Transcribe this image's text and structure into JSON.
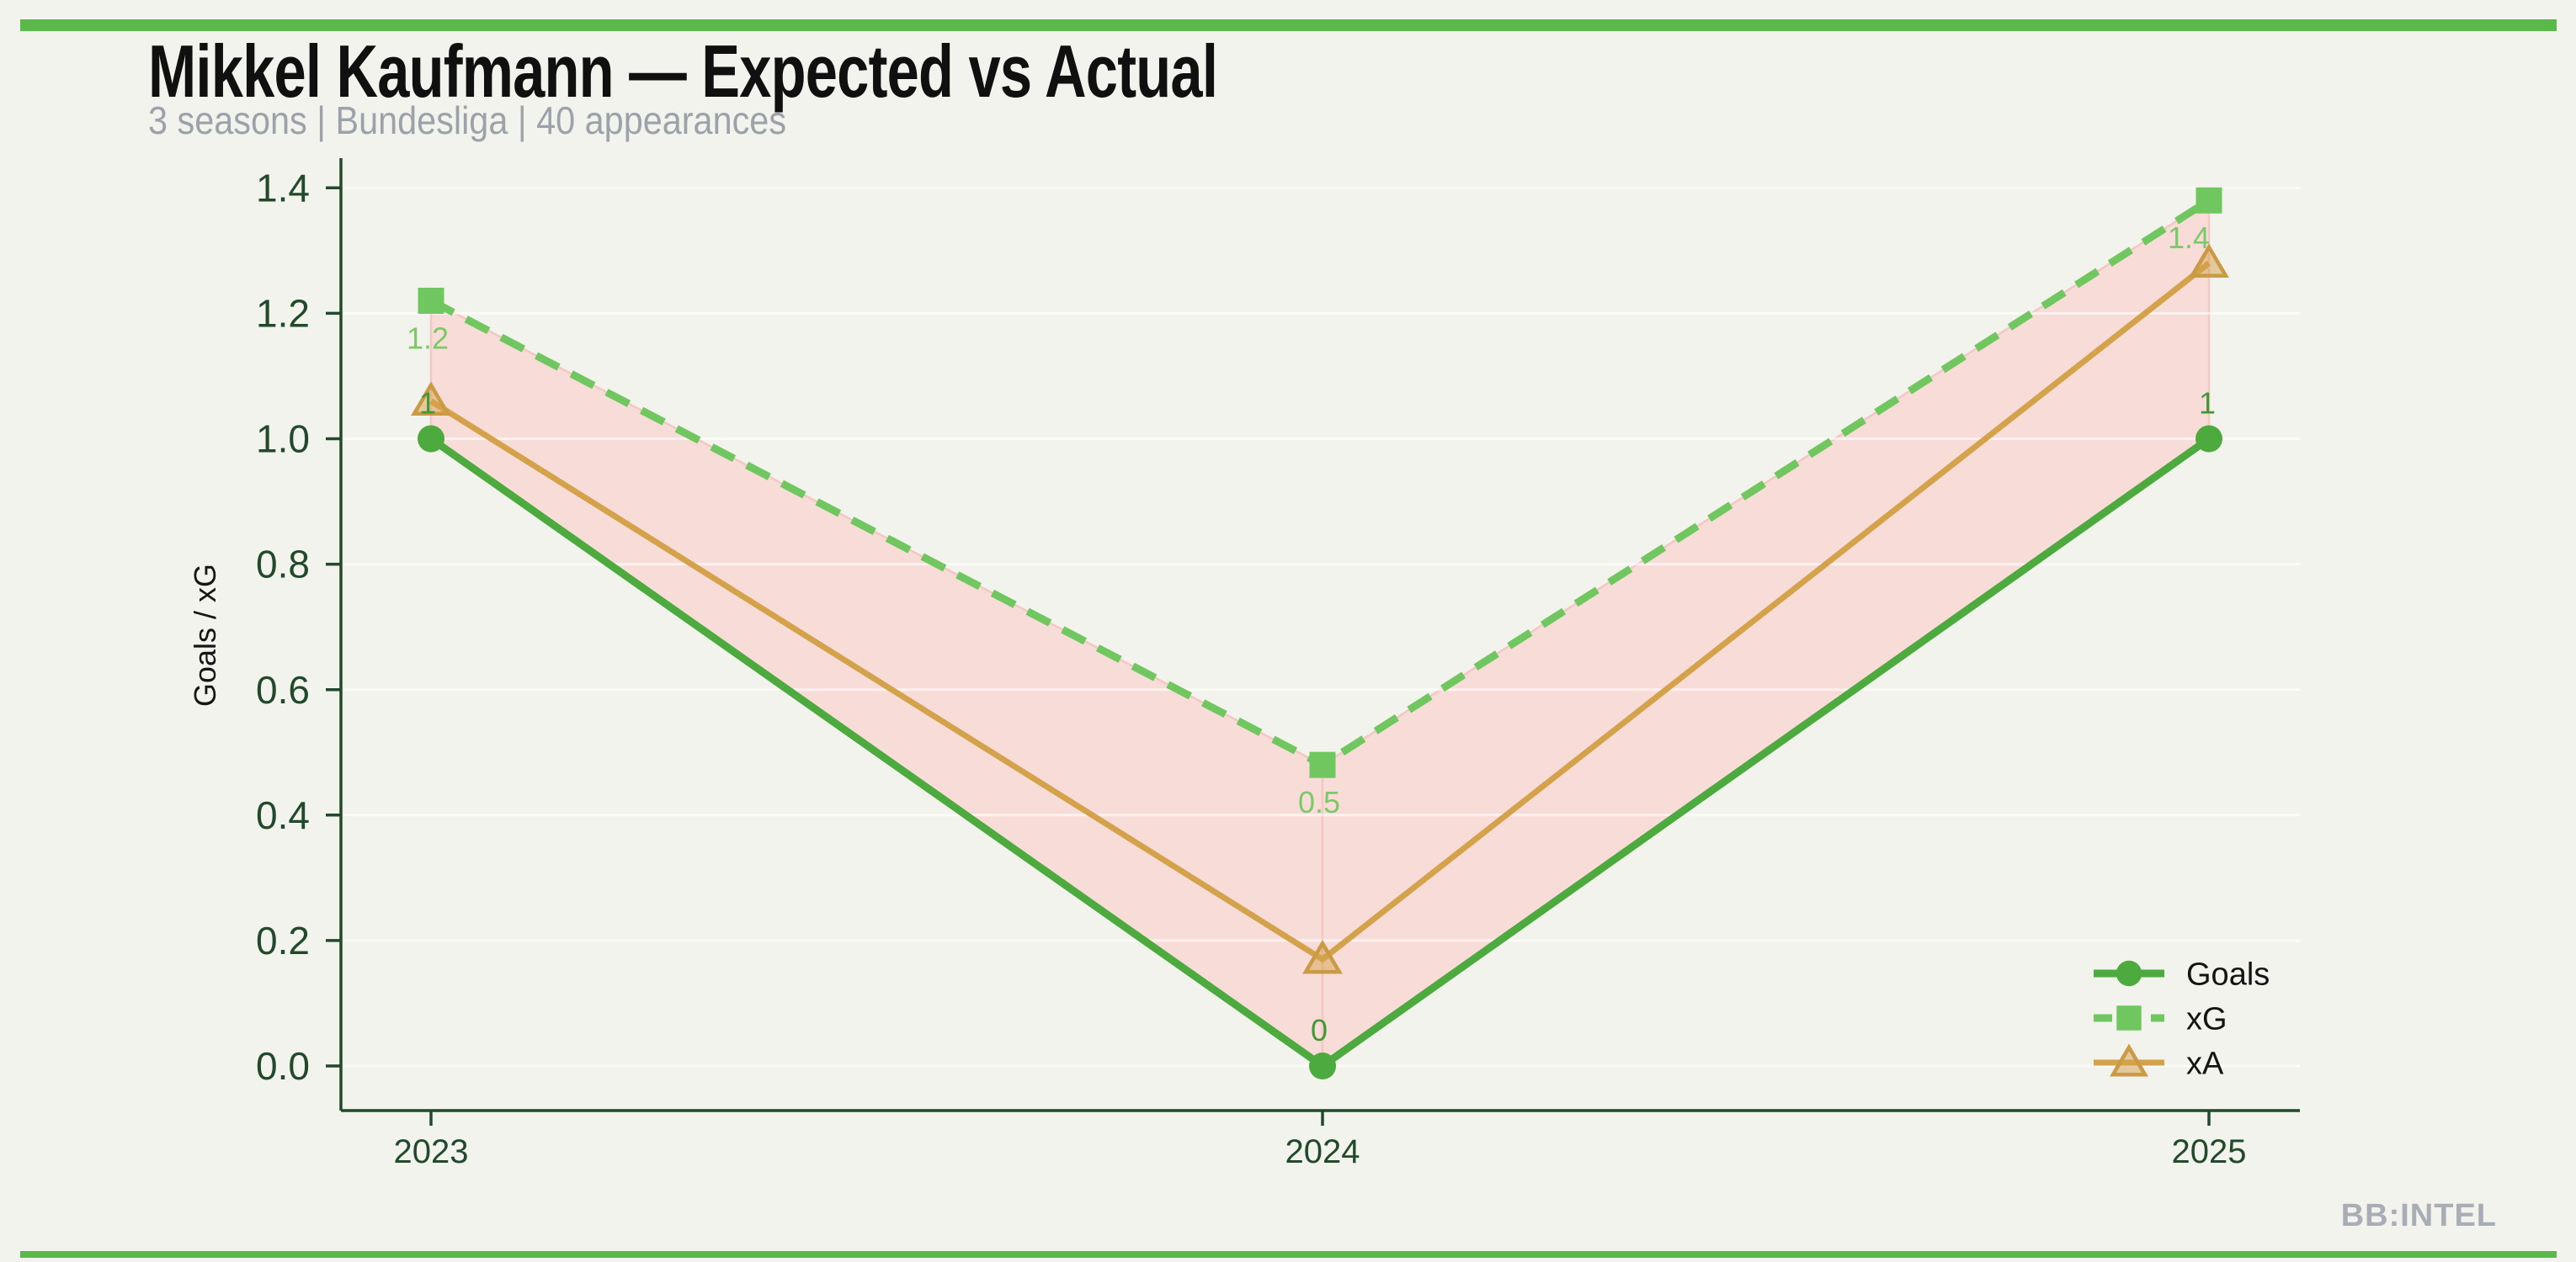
{
  "page": {
    "background": "#f2f3ec",
    "accent_bar_color": "#5bb84b",
    "watermark": "BB:INTEL"
  },
  "header": {
    "title": "Mikkel Kaufmann — Expected vs Actual",
    "subtitle": "3 seasons | Bundesliga | 40 appearances"
  },
  "chart_data": {
    "type": "line",
    "categories": [
      "2023",
      "2024",
      "2025"
    ],
    "series": [
      {
        "name": "Goals",
        "values": [
          1,
          0,
          1
        ],
        "point_labels": [
          "1",
          "0",
          "1"
        ],
        "label_placement": "above",
        "color": "#4caa3e",
        "label_color": "#449739",
        "marker": "circle",
        "line_style": "solid",
        "line_width": 9
      },
      {
        "name": "xG",
        "values": [
          1.22,
          0.48,
          1.38
        ],
        "point_labels": [
          "1.2",
          "0.5",
          "1.4"
        ],
        "label_placement": "below",
        "color": "#70c75f",
        "label_color": "#7cc968",
        "marker": "square",
        "line_style": "dashed",
        "line_width": 9
      },
      {
        "name": "xA",
        "values": [
          1.06,
          0.17,
          1.28
        ],
        "point_labels": null,
        "label_placement": null,
        "color": "#d3a24b",
        "label_color": null,
        "marker": "triangle",
        "line_style": "solid",
        "line_width": 7
      }
    ],
    "band": {
      "between": [
        "Goals",
        "xG"
      ],
      "fill": "#f8dcd8",
      "edge": "#f3c7c2"
    },
    "title": "Mikkel Kaufmann — Expected vs Actual",
    "xlabel": "",
    "ylabel": "Goals / xG",
    "ylim": [
      0,
      1.45
    ],
    "yticks": [
      "0.0",
      "0.2",
      "0.4",
      "0.6",
      "0.8",
      "1.0",
      "1.2",
      "1.4"
    ],
    "grid": true,
    "grid_color": "rgba(255,255,255,0.6)",
    "axis_color": "#23492c",
    "legend_position": "lower right",
    "legend_entries": [
      "Goals",
      "xG",
      "xA"
    ]
  }
}
